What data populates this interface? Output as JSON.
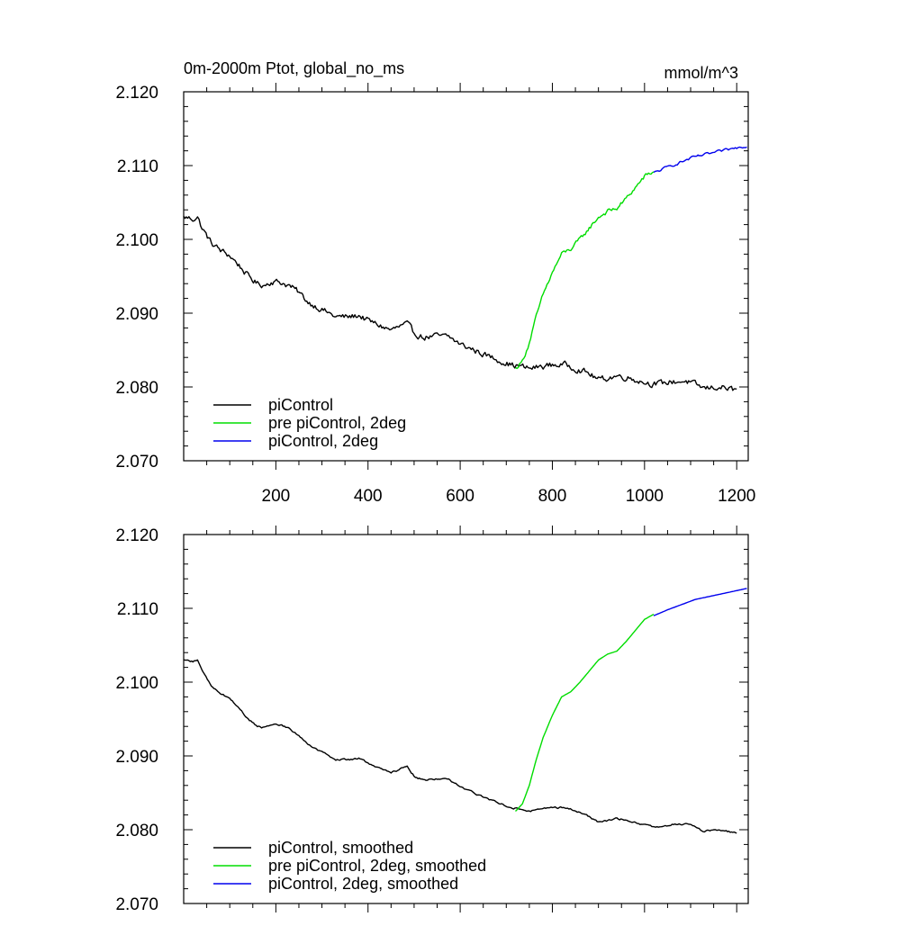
{
  "chart_data": [
    {
      "type": "line",
      "title": "0m-2000m Ptot, global_no_ms",
      "units": "mmol/m^3",
      "xlabel": "",
      "ylabel": "",
      "xlim": [
        0,
        1225
      ],
      "ylim": [
        2.07,
        2.12
      ],
      "x_ticks": [
        200,
        400,
        600,
        800,
        1000,
        1200
      ],
      "x_tick_labels": [
        "200",
        "400",
        "600",
        "800",
        "1000",
        "1200"
      ],
      "y_ticks": [
        2.07,
        2.08,
        2.09,
        2.1,
        2.11,
        2.12
      ],
      "y_tick_labels": [
        "2.070",
        "2.080",
        "2.090",
        "2.100",
        "2.110",
        "2.120"
      ],
      "grid": false,
      "legend_position": "bottom-left",
      "series": [
        {
          "name": "piControl",
          "color": "#000000",
          "noise": 0.00035,
          "points": [
            [
              0,
              2.103
            ],
            [
              20,
              2.1028
            ],
            [
              30,
              2.103
            ],
            [
              40,
              2.1015
            ],
            [
              60,
              2.0995
            ],
            [
              80,
              2.0985
            ],
            [
              100,
              2.0978
            ],
            [
              120,
              2.0965
            ],
            [
              140,
              2.095
            ],
            [
              160,
              2.094
            ],
            [
              175,
              2.0938
            ],
            [
              190,
              2.0943
            ],
            [
              210,
              2.0942
            ],
            [
              230,
              2.0937
            ],
            [
              250,
              2.0928
            ],
            [
              270,
              2.0915
            ],
            [
              300,
              2.0905
            ],
            [
              330,
              2.0895
            ],
            [
              360,
              2.0895
            ],
            [
              380,
              2.0897
            ],
            [
              400,
              2.089
            ],
            [
              430,
              2.0882
            ],
            [
              450,
              2.0877
            ],
            [
              470,
              2.0882
            ],
            [
              485,
              2.0885
            ],
            [
              500,
              2.0873
            ],
            [
              520,
              2.0867
            ],
            [
              550,
              2.0869
            ],
            [
              575,
              2.0868
            ],
            [
              600,
              2.0858
            ],
            [
              630,
              2.085
            ],
            [
              660,
              2.0842
            ],
            [
              690,
              2.0835
            ],
            [
              710,
              2.083
            ],
            [
              730,
              2.0828
            ],
            [
              750,
              2.0825
            ],
            [
              780,
              2.0828
            ],
            [
              800,
              2.083
            ],
            [
              830,
              2.083
            ],
            [
              860,
              2.0823
            ],
            [
              880,
              2.0818
            ],
            [
              900,
              2.081
            ],
            [
              920,
              2.0812
            ],
            [
              940,
              2.0815
            ],
            [
              970,
              2.0812
            ],
            [
              990,
              2.0808
            ],
            [
              1010,
              2.0805
            ],
            [
              1030,
              2.0804
            ],
            [
              1060,
              2.0807
            ],
            [
              1090,
              2.0808
            ],
            [
              1110,
              2.0803
            ],
            [
              1130,
              2.0798
            ],
            [
              1160,
              2.08
            ],
            [
              1180,
              2.0798
            ],
            [
              1200,
              2.0795
            ]
          ]
        },
        {
          "name": "pre piControl, 2deg",
          "color": "#00dd00",
          "noise": 0.00025,
          "points": [
            [
              720,
              2.0825
            ],
            [
              735,
              2.0835
            ],
            [
              750,
              2.086
            ],
            [
              765,
              2.0895
            ],
            [
              780,
              2.0925
            ],
            [
              800,
              2.0955
            ],
            [
              820,
              2.098
            ],
            [
              840,
              2.0987
            ],
            [
              860,
              2.1
            ],
            [
              880,
              2.1015
            ],
            [
              900,
              2.103
            ],
            [
              920,
              2.1038
            ],
            [
              940,
              2.1042
            ],
            [
              960,
              2.1055
            ],
            [
              980,
              2.107
            ],
            [
              1000,
              2.1085
            ],
            [
              1020,
              2.1092
            ]
          ]
        },
        {
          "name": "piControl, 2deg",
          "color": "#0000ee",
          "noise": 0.00015,
          "points": [
            [
              1020,
              2.109
            ],
            [
              1050,
              2.1098
            ],
            [
              1080,
              2.1105
            ],
            [
              1110,
              2.1112
            ],
            [
              1140,
              2.1116
            ],
            [
              1170,
              2.112
            ],
            [
              1200,
              2.1124
            ],
            [
              1222,
              2.1127
            ]
          ]
        }
      ]
    },
    {
      "type": "line",
      "title": "",
      "xlabel": "",
      "ylabel": "",
      "xlim": [
        0,
        1225
      ],
      "ylim": [
        2.07,
        2.12
      ],
      "x_ticks": [
        200,
        400,
        600,
        800,
        1000,
        1200
      ],
      "x_tick_labels": [],
      "y_ticks": [
        2.07,
        2.08,
        2.09,
        2.1,
        2.11,
        2.12
      ],
      "y_tick_labels": [
        "2.070",
        "2.080",
        "2.090",
        "2.100",
        "2.110",
        "2.120"
      ],
      "grid": false,
      "legend_position": "bottom-left",
      "series": [
        {
          "name": "piControl, smoothed",
          "color": "#000000",
          "noise": 0.0001,
          "points": [
            [
              0,
              2.103
            ],
            [
              20,
              2.1028
            ],
            [
              30,
              2.103
            ],
            [
              40,
              2.1015
            ],
            [
              60,
              2.0995
            ],
            [
              80,
              2.0985
            ],
            [
              100,
              2.0978
            ],
            [
              120,
              2.0965
            ],
            [
              140,
              2.095
            ],
            [
              160,
              2.094
            ],
            [
              175,
              2.0938
            ],
            [
              190,
              2.0943
            ],
            [
              210,
              2.0942
            ],
            [
              230,
              2.0937
            ],
            [
              250,
              2.0928
            ],
            [
              270,
              2.0915
            ],
            [
              300,
              2.0905
            ],
            [
              330,
              2.0895
            ],
            [
              360,
              2.0895
            ],
            [
              380,
              2.0897
            ],
            [
              400,
              2.089
            ],
            [
              430,
              2.0882
            ],
            [
              450,
              2.0877
            ],
            [
              470,
              2.0882
            ],
            [
              485,
              2.0885
            ],
            [
              500,
              2.0873
            ],
            [
              520,
              2.0867
            ],
            [
              550,
              2.0869
            ],
            [
              575,
              2.0868
            ],
            [
              600,
              2.0858
            ],
            [
              630,
              2.085
            ],
            [
              660,
              2.0842
            ],
            [
              690,
              2.0835
            ],
            [
              710,
              2.083
            ],
            [
              730,
              2.0828
            ],
            [
              750,
              2.0825
            ],
            [
              780,
              2.0828
            ],
            [
              800,
              2.083
            ],
            [
              830,
              2.083
            ],
            [
              860,
              2.0823
            ],
            [
              880,
              2.0818
            ],
            [
              900,
              2.081
            ],
            [
              920,
              2.0812
            ],
            [
              940,
              2.0815
            ],
            [
              970,
              2.0812
            ],
            [
              990,
              2.0808
            ],
            [
              1010,
              2.0805
            ],
            [
              1030,
              2.0804
            ],
            [
              1060,
              2.0807
            ],
            [
              1090,
              2.0808
            ],
            [
              1110,
              2.0803
            ],
            [
              1130,
              2.0798
            ],
            [
              1160,
              2.08
            ],
            [
              1180,
              2.0798
            ],
            [
              1200,
              2.0795
            ]
          ]
        },
        {
          "name": "pre piControl, 2deg, smoothed",
          "color": "#00dd00",
          "noise": 0.0,
          "points": [
            [
              720,
              2.0825
            ],
            [
              735,
              2.0835
            ],
            [
              750,
              2.086
            ],
            [
              765,
              2.0895
            ],
            [
              780,
              2.0925
            ],
            [
              800,
              2.0955
            ],
            [
              820,
              2.098
            ],
            [
              840,
              2.0987
            ],
            [
              860,
              2.1
            ],
            [
              880,
              2.1015
            ],
            [
              900,
              2.103
            ],
            [
              920,
              2.1038
            ],
            [
              940,
              2.1042
            ],
            [
              960,
              2.1055
            ],
            [
              980,
              2.107
            ],
            [
              1000,
              2.1085
            ],
            [
              1020,
              2.1092
            ]
          ]
        },
        {
          "name": "piControl, 2deg, smoothed",
          "color": "#0000ee",
          "noise": 0.0,
          "points": [
            [
              1020,
              2.109
            ],
            [
              1050,
              2.1098
            ],
            [
              1080,
              2.1105
            ],
            [
              1110,
              2.1112
            ],
            [
              1140,
              2.1116
            ],
            [
              1170,
              2.112
            ],
            [
              1200,
              2.1124
            ],
            [
              1222,
              2.1127
            ]
          ]
        }
      ]
    }
  ]
}
